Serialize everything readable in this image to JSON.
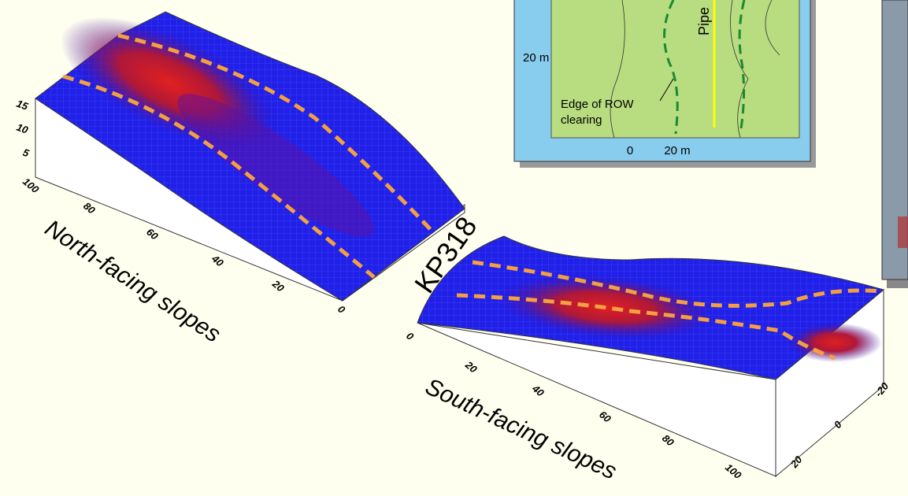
{
  "north_plot": {
    "z_ticks": [
      "15",
      "10",
      "5"
    ],
    "x_ticks": [
      "100",
      "80",
      "60",
      "40",
      "20",
      "0"
    ],
    "axis_label": "North-facing slopes"
  },
  "site_label": "KP318",
  "south_plot": {
    "x_ticks": [
      "0",
      "20",
      "40",
      "60",
      "80",
      "100"
    ],
    "y_ticks": [
      "-20",
      "0",
      "20"
    ],
    "axis_label": "South-facing slopes"
  },
  "inset_map": {
    "pipe_label": "Pipe",
    "scale_y": "20 m",
    "edge_label": [
      "Edge of ROW",
      "clearing"
    ],
    "x_ticks": [
      "0",
      "20 m"
    ]
  }
}
